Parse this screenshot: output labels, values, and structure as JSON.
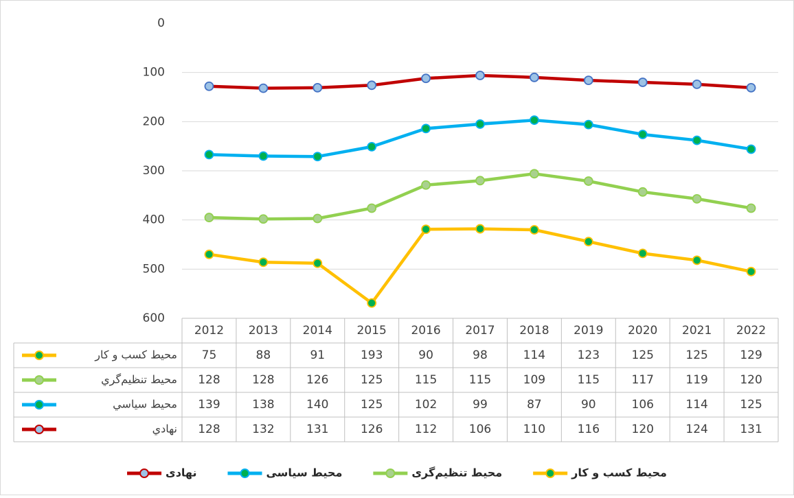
{
  "chart_data": {
    "type": "stacked_line",
    "categories": [
      "2012",
      "2013",
      "2014",
      "2015",
      "2016",
      "2017",
      "2018",
      "2019",
      "2020",
      "2021",
      "2022"
    ],
    "series": [
      {
        "name": "محیط کسب و کار",
        "table_label": "محيط کسب و کار",
        "color": "#ffc000",
        "marker_color": "#00b050",
        "values": [
          75,
          88,
          91,
          193,
          90,
          98,
          114,
          123,
          125,
          125,
          129
        ]
      },
      {
        "name": "محیط تنظیم‌گری",
        "table_label": "محيط تنظيم‌گري",
        "color": "#92d050",
        "marker_color": "#a9d18e",
        "values": [
          128,
          128,
          126,
          125,
          115,
          115,
          109,
          115,
          117,
          119,
          120
        ]
      },
      {
        "name": "محیط سیاسی",
        "table_label": "محيط سياسي",
        "color": "#00b0f0",
        "marker_color": "#00b050",
        "values": [
          139,
          138,
          140,
          125,
          102,
          99,
          87,
          90,
          106,
          114,
          125
        ]
      },
      {
        "name": "نهادی",
        "table_label": "نهادي",
        "color": "#c00000",
        "marker_color": "#9dc3e6",
        "values": [
          128,
          132,
          131,
          126,
          112,
          106,
          110,
          116,
          120,
          124,
          131
        ]
      }
    ],
    "ylim": [
      0,
      600
    ],
    "yticks": [
      0,
      100,
      200,
      300,
      400,
      500,
      600
    ],
    "y_reversed": true,
    "grid": true,
    "legend": "bottom",
    "data_table": true
  }
}
